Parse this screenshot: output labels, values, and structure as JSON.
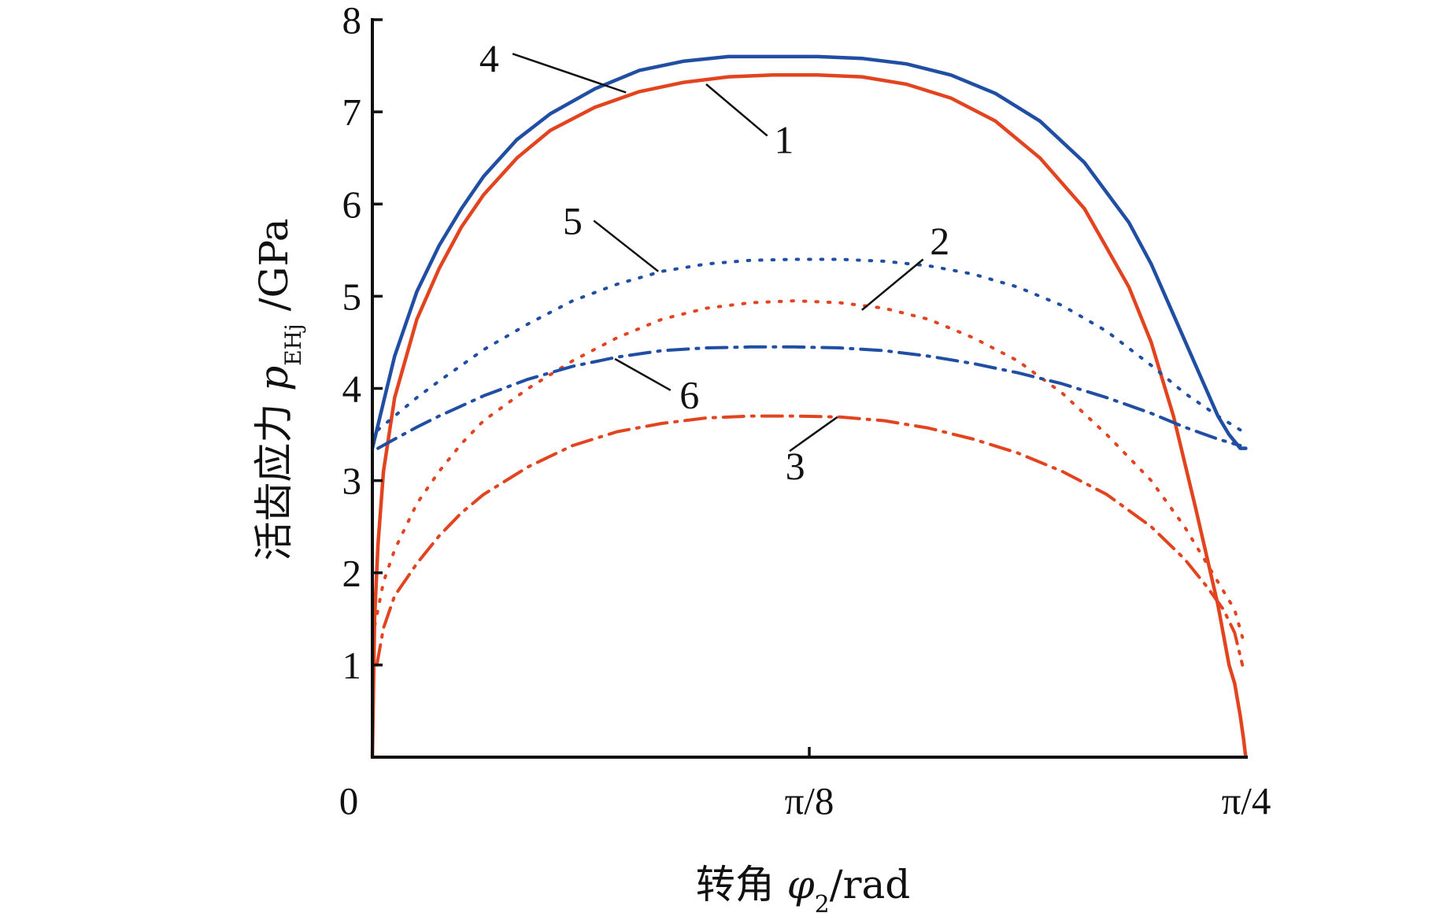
{
  "chart_data": {
    "type": "line",
    "xlabel": {
      "prefix": "转角 ",
      "symbol": "φ",
      "subscript": "2",
      "suffix": "/rad"
    },
    "ylabel": {
      "prefix": "活齿应力 ",
      "symbol": "p",
      "subscript": "EHj",
      "suffix": " /GPa"
    },
    "xlim": [
      0,
      0.7854
    ],
    "ylim": [
      0,
      8
    ],
    "x_ticks": [
      {
        "value": 0,
        "label": "0"
      },
      {
        "value": 0.3927,
        "label": "π/8"
      },
      {
        "value": 0.7854,
        "label": "π/4"
      }
    ],
    "y_ticks": [
      {
        "value": 1,
        "label": "1"
      },
      {
        "value": 2,
        "label": "2"
      },
      {
        "value": 3,
        "label": "3"
      },
      {
        "value": 4,
        "label": "4"
      },
      {
        "value": 5,
        "label": "5"
      },
      {
        "value": 6,
        "label": "6"
      },
      {
        "value": 7,
        "label": "7"
      },
      {
        "value": 8,
        "label": "8"
      }
    ],
    "grid": false,
    "legend": "none",
    "series": [
      {
        "label": "1",
        "color": "#e2441f",
        "style": "solid",
        "x": [
          0.0,
          0.002,
          0.005,
          0.01,
          0.02,
          0.04,
          0.06,
          0.08,
          0.1,
          0.13,
          0.16,
          0.2,
          0.24,
          0.28,
          0.32,
          0.36,
          0.38,
          0.4,
          0.44,
          0.48,
          0.52,
          0.56,
          0.6,
          0.64,
          0.68,
          0.7,
          0.72,
          0.74,
          0.76,
          0.77,
          0.775,
          0.78,
          0.783,
          0.785
        ],
        "y": [
          0.0,
          1.5,
          2.3,
          3.1,
          3.9,
          4.75,
          5.3,
          5.75,
          6.1,
          6.5,
          6.8,
          7.05,
          7.22,
          7.32,
          7.38,
          7.4,
          7.4,
          7.4,
          7.38,
          7.3,
          7.15,
          6.9,
          6.5,
          5.95,
          5.1,
          4.5,
          3.7,
          2.7,
          1.65,
          1.0,
          0.8,
          0.45,
          0.2,
          0.0
        ],
        "label_pos": [
          0.37,
          6.7
        ]
      },
      {
        "label": "2",
        "color": "#e2441f",
        "style": "dotted",
        "x": [
          0.0,
          0.005,
          0.01,
          0.02,
          0.04,
          0.06,
          0.08,
          0.1,
          0.14,
          0.18,
          0.22,
          0.26,
          0.3,
          0.34,
          0.38,
          0.42,
          0.46,
          0.5,
          0.54,
          0.58,
          0.62,
          0.66,
          0.7,
          0.73,
          0.75,
          0.765,
          0.775,
          0.782
        ],
        "y": [
          1.3,
          1.6,
          1.9,
          2.25,
          2.75,
          3.1,
          3.4,
          3.65,
          4.0,
          4.3,
          4.55,
          4.75,
          4.87,
          4.93,
          4.95,
          4.93,
          4.87,
          4.75,
          4.55,
          4.3,
          3.95,
          3.5,
          3.0,
          2.5,
          2.1,
          1.8,
          1.6,
          1.3
        ],
        "label_pos": [
          0.51,
          5.6
        ]
      },
      {
        "label": "3",
        "color": "#e2441f",
        "style": "dashdot",
        "x": [
          0.004,
          0.01,
          0.02,
          0.04,
          0.06,
          0.08,
          0.1,
          0.14,
          0.18,
          0.22,
          0.26,
          0.3,
          0.34,
          0.38,
          0.42,
          0.46,
          0.5,
          0.54,
          0.58,
          0.62,
          0.66,
          0.7,
          0.73,
          0.75,
          0.765,
          0.775,
          0.782
        ],
        "y": [
          1.0,
          1.4,
          1.75,
          2.1,
          2.4,
          2.65,
          2.85,
          3.15,
          3.38,
          3.53,
          3.62,
          3.68,
          3.7,
          3.7,
          3.69,
          3.65,
          3.57,
          3.45,
          3.3,
          3.1,
          2.85,
          2.5,
          2.15,
          1.85,
          1.6,
          1.35,
          1.0
        ],
        "label_pos": [
          0.38,
          3.16
        ]
      },
      {
        "label": "4",
        "color": "#1f4ea3",
        "style": "solid",
        "x": [
          0.0,
          0.005,
          0.01,
          0.02,
          0.04,
          0.06,
          0.08,
          0.1,
          0.13,
          0.16,
          0.2,
          0.24,
          0.28,
          0.32,
          0.36,
          0.38,
          0.4,
          0.44,
          0.48,
          0.52,
          0.56,
          0.6,
          0.64,
          0.68,
          0.7,
          0.72,
          0.74,
          0.76,
          0.77,
          0.78,
          0.785
        ],
        "y": [
          3.35,
          3.6,
          3.85,
          4.35,
          5.05,
          5.55,
          5.95,
          6.3,
          6.7,
          6.98,
          7.25,
          7.45,
          7.55,
          7.6,
          7.6,
          7.6,
          7.6,
          7.58,
          7.52,
          7.4,
          7.2,
          6.9,
          6.45,
          5.8,
          5.35,
          4.8,
          4.25,
          3.7,
          3.5,
          3.35,
          3.35
        ],
        "label_pos": [
          0.105,
          7.58
        ]
      },
      {
        "label": "5",
        "color": "#1f4ea3",
        "style": "dotted",
        "x": [
          0.005,
          0.02,
          0.04,
          0.06,
          0.08,
          0.1,
          0.14,
          0.18,
          0.22,
          0.26,
          0.3,
          0.34,
          0.38,
          0.42,
          0.46,
          0.5,
          0.54,
          0.58,
          0.62,
          0.66,
          0.7,
          0.73,
          0.76,
          0.78
        ],
        "y": [
          3.55,
          3.7,
          3.9,
          4.08,
          4.25,
          4.42,
          4.7,
          4.95,
          5.13,
          5.27,
          5.35,
          5.39,
          5.4,
          5.4,
          5.38,
          5.33,
          5.24,
          5.1,
          4.9,
          4.62,
          4.25,
          3.95,
          3.7,
          3.55
        ],
        "label_pos": [
          0.18,
          5.82
        ]
      },
      {
        "label": "6",
        "color": "#1f4ea3",
        "style": "dashdot",
        "x": [
          0.005,
          0.02,
          0.04,
          0.06,
          0.08,
          0.1,
          0.14,
          0.18,
          0.22,
          0.26,
          0.3,
          0.34,
          0.38,
          0.42,
          0.46,
          0.5,
          0.54,
          0.58,
          0.62,
          0.66,
          0.7,
          0.73,
          0.76,
          0.78
        ],
        "y": [
          3.35,
          3.45,
          3.58,
          3.7,
          3.81,
          3.92,
          4.1,
          4.24,
          4.34,
          4.41,
          4.44,
          4.45,
          4.45,
          4.44,
          4.41,
          4.35,
          4.27,
          4.17,
          4.05,
          3.9,
          3.73,
          3.58,
          3.45,
          3.38
        ],
        "label_pos": [
          0.285,
          3.93
        ]
      }
    ],
    "label_leaders": [
      {
        "label": "1",
        "from": [
          0.355,
          6.74
        ],
        "to": [
          0.3,
          7.3
        ]
      },
      {
        "label": "2",
        "from": [
          0.495,
          5.4
        ],
        "to": [
          0.44,
          4.85
        ]
      },
      {
        "label": "3",
        "from": [
          0.375,
          3.32
        ],
        "to": [
          0.418,
          3.69
        ]
      },
      {
        "label": "4",
        "from": [
          0.126,
          7.63
        ],
        "to": [
          0.228,
          7.21
        ]
      },
      {
        "label": "5",
        "from": [
          0.199,
          5.82
        ],
        "to": [
          0.257,
          5.27
        ]
      },
      {
        "label": "6",
        "from": [
          0.268,
          3.98
        ],
        "to": [
          0.218,
          4.32
        ]
      }
    ]
  }
}
